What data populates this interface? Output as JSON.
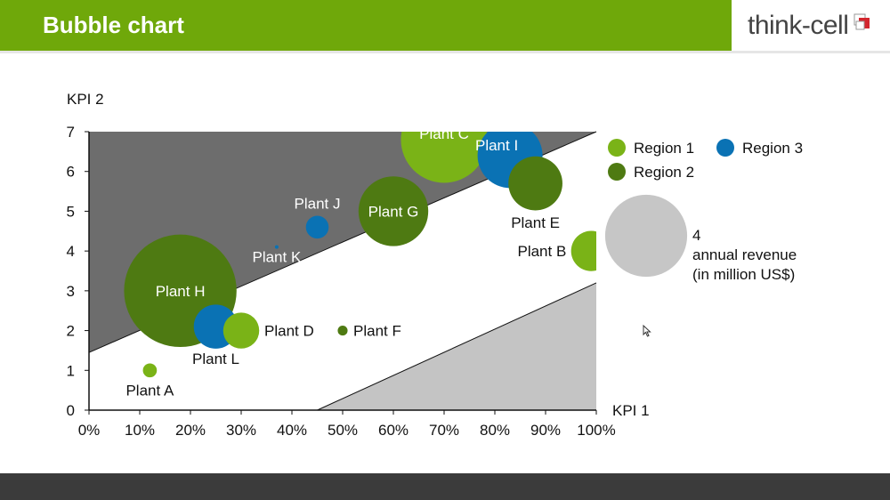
{
  "header": {
    "title": "Bubble chart"
  },
  "logo": {
    "text": "think-cell",
    "icon": "think-cell-logo-icon"
  },
  "colors": {
    "header_bg": "#6fa80a",
    "region1": "#7ab317",
    "region2": "#4e7a12",
    "region3": "#0a72b4",
    "dark_zone": "#6d6d6d",
    "light_zone": "#c4c4c4",
    "size_legend": "#c6c6c6"
  },
  "chart_data": {
    "type": "scatter",
    "subtype": "bubble",
    "title": "",
    "xlabel": "KPI 1",
    "ylabel": "KPI 2",
    "xlim": [
      0,
      1
    ],
    "ylim": [
      0,
      7
    ],
    "x_ticks": [
      "0%",
      "10%",
      "20%",
      "30%",
      "40%",
      "50%",
      "60%",
      "70%",
      "80%",
      "90%",
      "100%"
    ],
    "y_ticks": [
      "0",
      "1",
      "2",
      "3",
      "4",
      "5",
      "6",
      "7"
    ],
    "series": [
      {
        "name": "Region 1",
        "color": "#7ab317",
        "points": [
          {
            "label": "Plant A",
            "x": 0.12,
            "y": 1.0,
            "size": 0.06
          },
          {
            "label": "Plant B",
            "x": 0.99,
            "y": 4.0,
            "size": 0.5
          },
          {
            "label": "Plant C",
            "x": 0.7,
            "y": 6.8,
            "size": 2.3
          },
          {
            "label": "Plant D",
            "x": 0.3,
            "y": 2.0,
            "size": 0.4
          }
        ]
      },
      {
        "name": "Region 2",
        "color": "#4e7a12",
        "points": [
          {
            "label": "Plant E",
            "x": 0.88,
            "y": 5.7,
            "size": 0.9
          },
          {
            "label": "Plant F",
            "x": 0.5,
            "y": 2.0,
            "size": 0.03
          },
          {
            "label": "Plant G",
            "x": 0.6,
            "y": 5.0,
            "size": 1.5
          },
          {
            "label": "Plant H",
            "x": 0.18,
            "y": 3.0,
            "size": 3.9
          }
        ]
      },
      {
        "name": "Region 3",
        "color": "#0a72b4",
        "points": [
          {
            "label": "Plant I",
            "x": 0.83,
            "y": 6.4,
            "size": 1.3
          },
          {
            "label": "Plant J",
            "x": 0.45,
            "y": 4.6,
            "size": 0.16
          },
          {
            "label": "Plant K",
            "x": 0.37,
            "y": 4.1,
            "size": 0.001
          },
          {
            "label": "Plant L",
            "x": 0.25,
            "y": 2.1,
            "size": 0.6
          }
        ]
      }
    ],
    "partition_lines": [
      {
        "x1": 0.0,
        "y1": 1.45,
        "x2": 1.0,
        "y2": 7.0
      },
      {
        "x1": 0.45,
        "y1": 0.0,
        "x2": 1.0,
        "y2": 3.2
      }
    ],
    "size_legend": {
      "value": "4",
      "label_line1": "annual revenue",
      "label_line2": "(in million US$)"
    },
    "legend": {
      "placement": "right"
    }
  }
}
